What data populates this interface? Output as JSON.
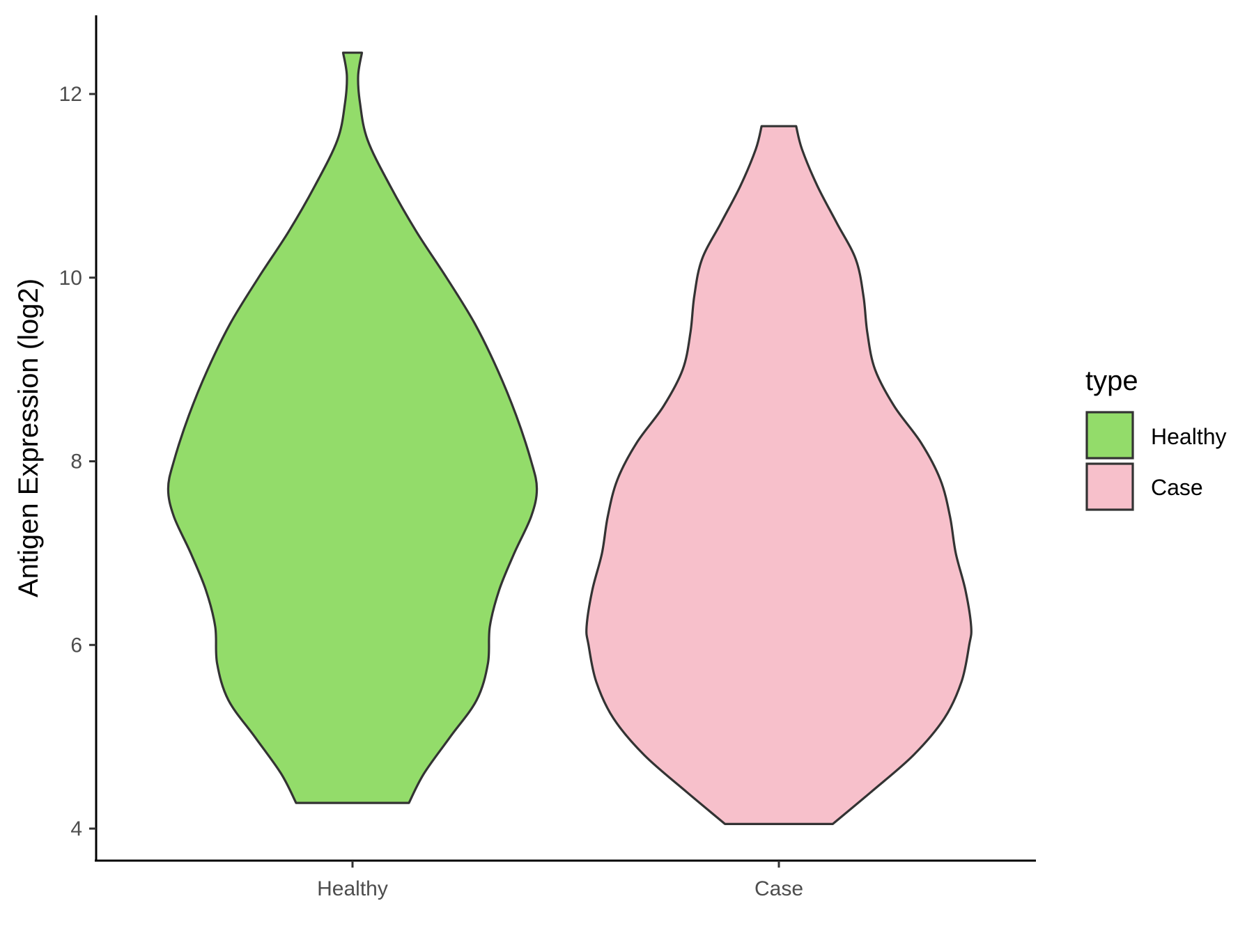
{
  "chart_data": {
    "type": "violin",
    "ylabel": "Antigen Expression (log2)",
    "xlabel": "",
    "ylim": [
      3.75,
      12.9
    ],
    "yticks": [
      4,
      6,
      8,
      10,
      12
    ],
    "categories": [
      "Healthy",
      "Case"
    ],
    "legend": {
      "title": "type",
      "position": "right",
      "items": [
        {
          "label": "Healthy",
          "color": "#93DC6A"
        },
        {
          "label": "Case",
          "color": "#F7C0CB"
        }
      ]
    },
    "grid": false,
    "series": [
      {
        "name": "Healthy",
        "color": "#93DC6A",
        "min": 4.28,
        "max": 12.45,
        "density": [
          [
            4.28,
            0.3
          ],
          [
            4.6,
            0.38
          ],
          [
            5.0,
            0.52
          ],
          [
            5.4,
            0.66
          ],
          [
            5.8,
            0.72
          ],
          [
            6.2,
            0.73
          ],
          [
            6.6,
            0.78
          ],
          [
            7.0,
            0.86
          ],
          [
            7.4,
            0.95
          ],
          [
            7.7,
            0.98
          ],
          [
            8.0,
            0.95
          ],
          [
            8.5,
            0.87
          ],
          [
            9.0,
            0.77
          ],
          [
            9.5,
            0.65
          ],
          [
            10.0,
            0.5
          ],
          [
            10.5,
            0.34
          ],
          [
            11.0,
            0.2
          ],
          [
            11.5,
            0.08
          ],
          [
            11.9,
            0.04
          ],
          [
            12.2,
            0.03
          ],
          [
            12.45,
            0.05
          ]
        ]
      },
      {
        "name": "Case",
        "color": "#F7C0CB",
        "min": 4.05,
        "max": 11.65,
        "density": [
          [
            4.05,
            0.28
          ],
          [
            4.4,
            0.48
          ],
          [
            4.8,
            0.7
          ],
          [
            5.2,
            0.86
          ],
          [
            5.6,
            0.95
          ],
          [
            6.0,
            0.99
          ],
          [
            6.2,
            1.0
          ],
          [
            6.6,
            0.97
          ],
          [
            7.0,
            0.92
          ],
          [
            7.4,
            0.89
          ],
          [
            7.8,
            0.84
          ],
          [
            8.2,
            0.74
          ],
          [
            8.6,
            0.6
          ],
          [
            9.0,
            0.5
          ],
          [
            9.4,
            0.46
          ],
          [
            9.8,
            0.44
          ],
          [
            10.2,
            0.4
          ],
          [
            10.6,
            0.3
          ],
          [
            11.0,
            0.2
          ],
          [
            11.4,
            0.12
          ],
          [
            11.65,
            0.09
          ]
        ]
      }
    ]
  }
}
